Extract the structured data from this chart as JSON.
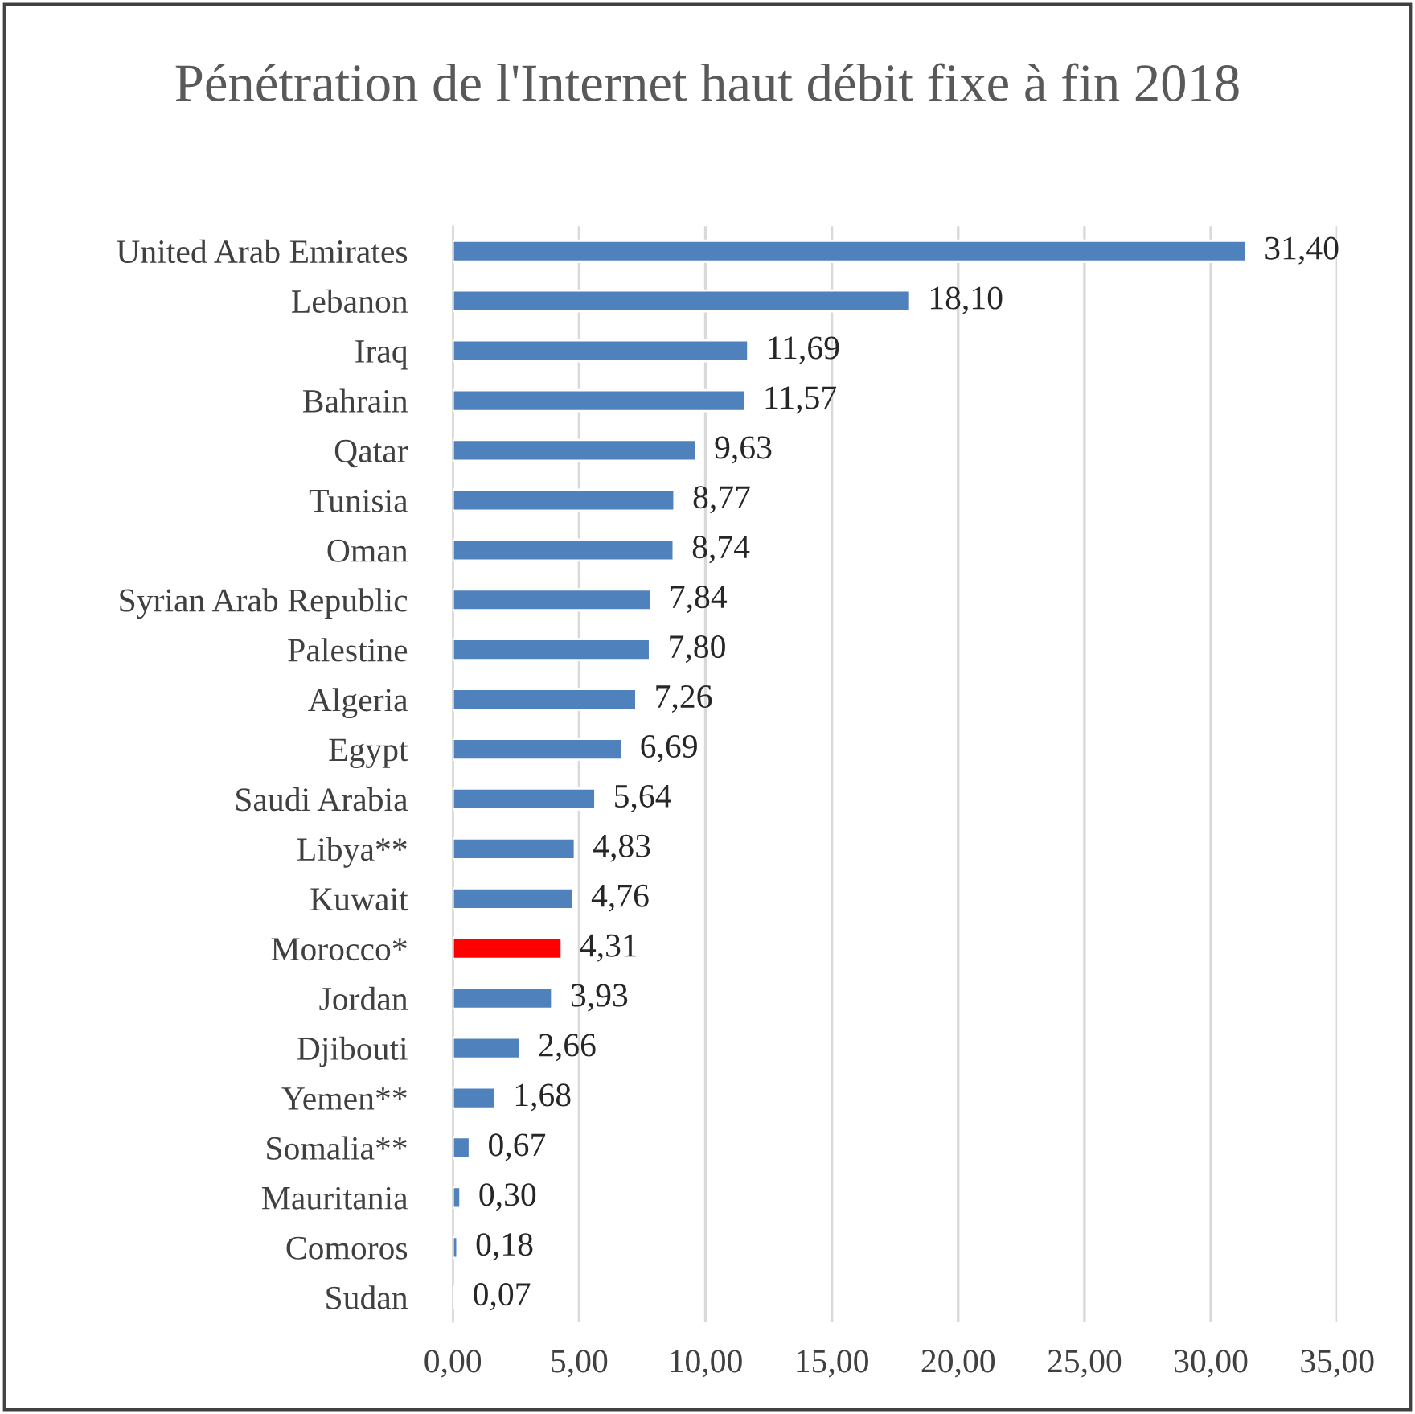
{
  "chart_data": {
    "type": "bar",
    "orientation": "horizontal",
    "title": "Pénétration de l'Internet haut débit fixe à fin 2018",
    "categories": [
      "United Arab Emirates",
      "Lebanon",
      "Iraq",
      "Bahrain",
      "Qatar",
      "Tunisia",
      "Oman",
      "Syrian Arab Republic",
      "Palestine",
      "Algeria",
      "Egypt",
      "Saudi Arabia",
      "Libya**",
      "Kuwait",
      "Morocco*",
      "Jordan",
      "Djibouti",
      "Yemen**",
      "Somalia**",
      "Mauritania",
      "Comoros",
      "Sudan"
    ],
    "values": [
      31.4,
      18.1,
      11.69,
      11.57,
      9.63,
      8.77,
      8.74,
      7.84,
      7.8,
      7.26,
      6.69,
      5.64,
      4.83,
      4.76,
      4.31,
      3.93,
      2.66,
      1.68,
      0.67,
      0.3,
      0.18,
      0.07
    ],
    "value_labels": [
      "31,40",
      "18,10",
      "11,69",
      "11,57",
      "9,63",
      "8,77",
      "8,74",
      "7,84",
      "7,80",
      "7,26",
      "6,69",
      "5,64",
      "4,83",
      "4,76",
      "4,31",
      "3,93",
      "2,66",
      "1,68",
      "0,67",
      "0,30",
      "0,18",
      "0,07"
    ],
    "colors": [
      "#4f81bd",
      "#4f81bd",
      "#4f81bd",
      "#4f81bd",
      "#4f81bd",
      "#4f81bd",
      "#4f81bd",
      "#4f81bd",
      "#4f81bd",
      "#4f81bd",
      "#4f81bd",
      "#4f81bd",
      "#4f81bd",
      "#4f81bd",
      "#ff0000",
      "#4f81bd",
      "#4f81bd",
      "#4f81bd",
      "#4f81bd",
      "#4f81bd",
      "#4f81bd",
      "#4f81bd"
    ],
    "xlim": [
      0,
      35
    ],
    "xticks": [
      {
        "value": 0,
        "label": "0,00"
      },
      {
        "value": 5,
        "label": "5,00"
      },
      {
        "value": 10,
        "label": "10,00"
      },
      {
        "value": 15,
        "label": "15,00"
      },
      {
        "value": 20,
        "label": "20,00"
      },
      {
        "value": 25,
        "label": "25,00"
      },
      {
        "value": 30,
        "label": "30,00"
      },
      {
        "value": 35,
        "label": "35,00"
      }
    ],
    "grid": "x"
  }
}
